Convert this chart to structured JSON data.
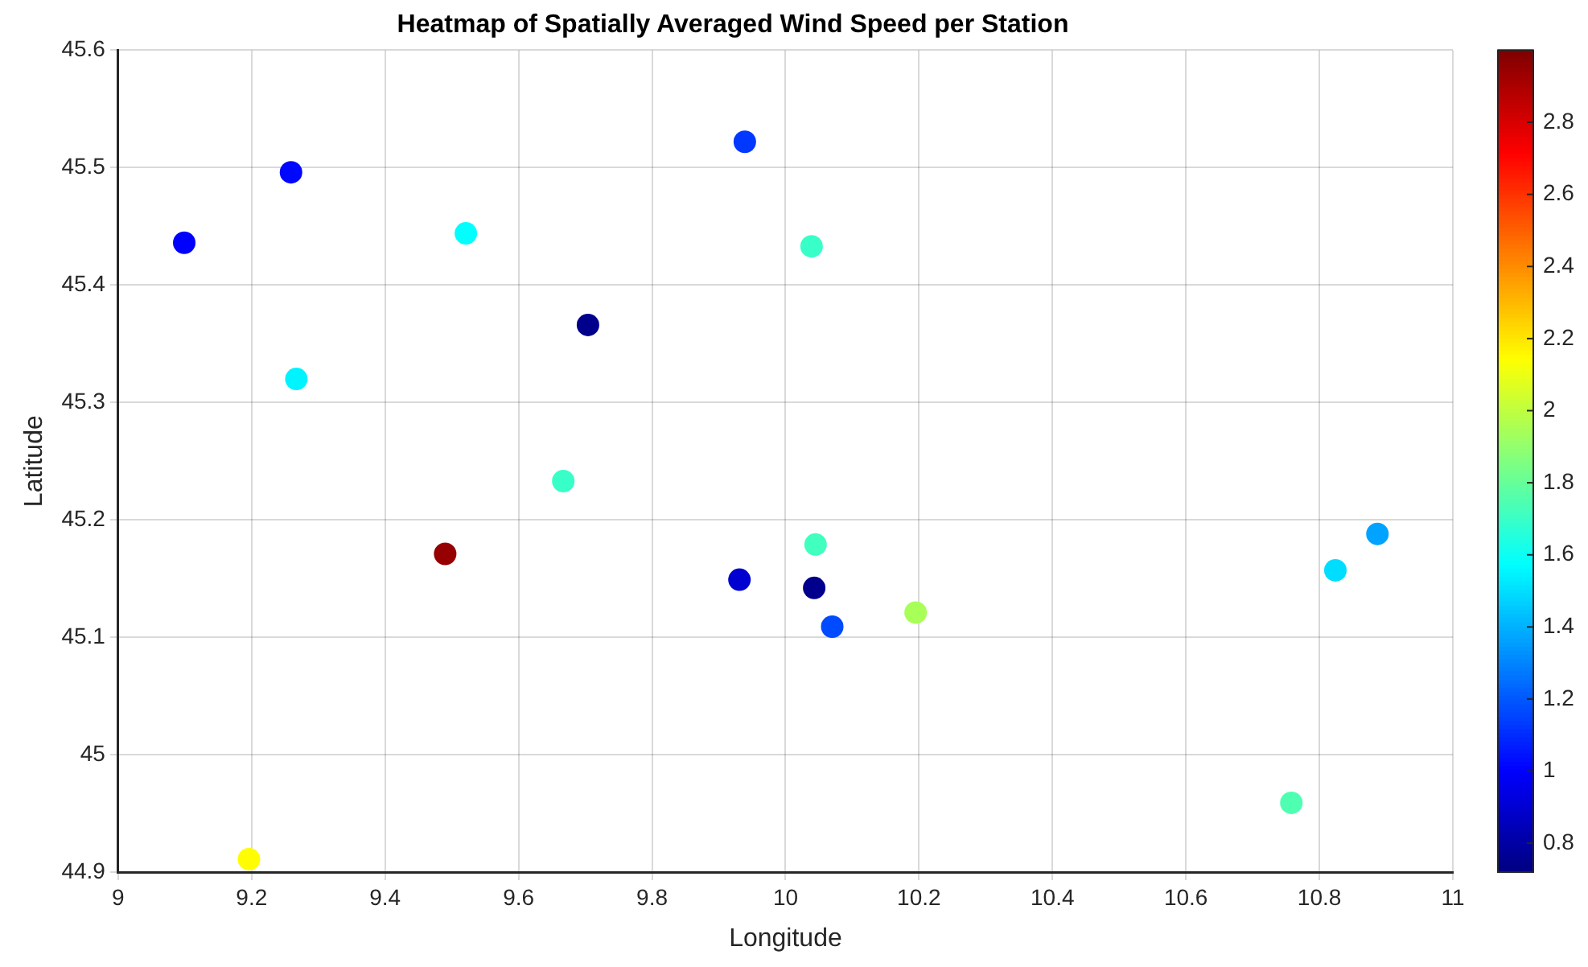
{
  "chart_data": {
    "type": "scatter",
    "title": "Heatmap of Spatially Averaged Wind Speed per Station",
    "xlabel": "Longitude",
    "ylabel": "Latitude",
    "x": [
      9.099,
      9.259,
      9.521,
      9.704,
      9.267,
      9.667,
      9.939,
      10.039,
      9.49,
      9.931,
      9.196,
      10.045,
      10.043,
      10.07,
      10.195,
      10.824,
      10.887,
      10.758
    ],
    "values": [
      45.436,
      45.496,
      45.444,
      45.366,
      45.32,
      45.233,
      45.522,
      45.433,
      45.171,
      45.149,
      44.911,
      45.179,
      45.142,
      45.109,
      45.121,
      45.157,
      45.188,
      44.959
    ],
    "cvalues": [
      1.0,
      1.02,
      1.58,
      0.75,
      1.55,
      1.7,
      1.13,
      1.7,
      2.95,
      0.9,
      2.15,
      1.72,
      0.75,
      1.17,
      1.95,
      1.5,
      1.37,
      1.75
    ],
    "clim": [
      0.72,
      3.0
    ],
    "cticks": [
      0.8,
      1,
      1.2,
      1.4,
      1.6,
      1.8,
      2,
      2.2,
      2.4,
      2.6,
      2.8
    ],
    "xlim": [
      9,
      11
    ],
    "xticks": [
      9,
      9.2,
      9.4,
      9.6,
      9.8,
      10,
      10.2,
      10.4,
      10.6,
      10.8,
      11
    ],
    "ylim": [
      44.9,
      45.6
    ],
    "yticks": [
      44.9,
      45,
      45.1,
      45.2,
      45.3,
      45.4,
      45.5,
      45.6
    ],
    "grid": true,
    "marker": "circle"
  }
}
